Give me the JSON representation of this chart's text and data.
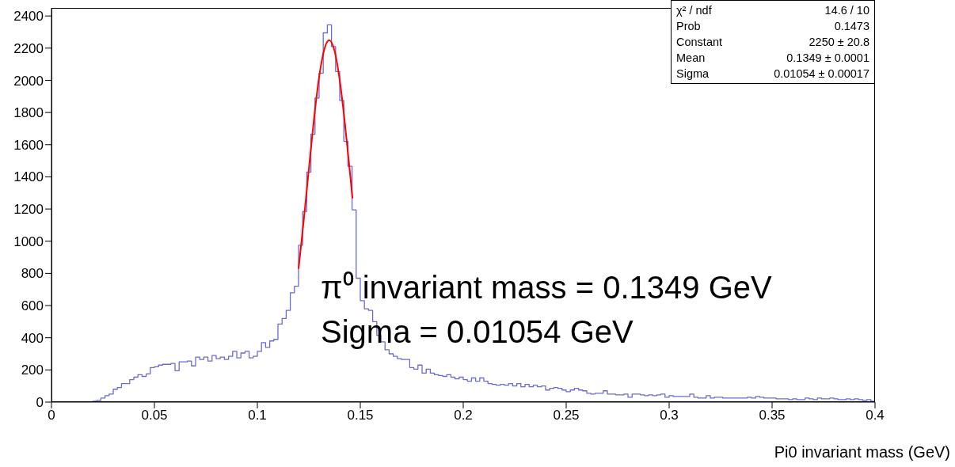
{
  "chart_data": {
    "type": "histogram",
    "xlabel": "Pi0 invariant mass (GeV)",
    "color": "#6b6bd6",
    "bins": [
      0,
      0.002,
      0.004,
      0.006,
      0.008,
      0.01,
      0.012,
      0.014,
      0.016,
      0.018,
      0.02,
      0.022,
      0.024,
      0.026,
      0.028,
      0.03,
      0.032,
      0.034,
      0.036,
      0.038,
      0.04,
      0.042,
      0.044,
      0.046,
      0.048,
      0.05,
      0.052,
      0.054,
      0.056,
      0.058,
      0.06,
      0.062,
      0.064,
      0.066,
      0.068,
      0.07,
      0.072,
      0.074,
      0.076,
      0.078,
      0.08,
      0.082,
      0.084,
      0.086,
      0.088,
      0.09,
      0.092,
      0.094,
      0.096,
      0.098,
      0.1,
      0.102,
      0.104,
      0.106,
      0.108,
      0.11,
      0.112,
      0.114,
      0.116,
      0.118,
      0.12,
      0.122,
      0.124,
      0.126,
      0.128,
      0.13,
      0.132,
      0.134,
      0.136,
      0.138,
      0.14,
      0.142,
      0.144,
      0.146,
      0.148,
      0.15,
      0.152,
      0.154,
      0.156,
      0.158,
      0.16,
      0.162,
      0.164,
      0.166,
      0.168,
      0.17,
      0.172,
      0.174,
      0.176,
      0.178,
      0.18,
      0.182,
      0.184,
      0.186,
      0.188,
      0.19,
      0.192,
      0.194,
      0.196,
      0.198,
      0.2,
      0.202,
      0.204,
      0.206,
      0.208,
      0.21,
      0.212,
      0.214,
      0.216,
      0.218,
      0.22,
      0.222,
      0.224,
      0.226,
      0.228,
      0.23,
      0.232,
      0.234,
      0.236,
      0.238,
      0.24,
      0.242,
      0.244,
      0.246,
      0.248,
      0.25,
      0.252,
      0.254,
      0.256,
      0.258,
      0.26,
      0.262,
      0.264,
      0.266,
      0.268,
      0.27,
      0.272,
      0.274,
      0.276,
      0.278,
      0.28,
      0.282,
      0.284,
      0.286,
      0.288,
      0.29,
      0.292,
      0.294,
      0.296,
      0.298,
      0.3,
      0.302,
      0.304,
      0.306,
      0.308,
      0.31,
      0.312,
      0.314,
      0.316,
      0.318,
      0.32,
      0.322,
      0.324,
      0.326,
      0.328,
      0.33,
      0.332,
      0.334,
      0.336,
      0.338,
      0.34,
      0.342,
      0.344,
      0.346,
      0.348,
      0.35,
      0.352,
      0.354,
      0.356,
      0.358,
      0.36,
      0.362,
      0.364,
      0.366,
      0.368,
      0.37,
      0.372,
      0.374,
      0.376,
      0.378,
      0.38,
      0.382,
      0.384,
      0.386,
      0.388,
      0.39,
      0.392,
      0.394,
      0.396,
      0.398,
      0.4
    ],
    "values": [
      0,
      0,
      0,
      0,
      0,
      0,
      0,
      0,
      0,
      0,
      5,
      10,
      25,
      40,
      50,
      80,
      90,
      115,
      115,
      140,
      155,
      170,
      160,
      175,
      215,
      220,
      230,
      235,
      235,
      240,
      195,
      250,
      250,
      255,
      225,
      280,
      265,
      280,
      255,
      290,
      270,
      280,
      265,
      285,
      315,
      275,
      305,
      315,
      275,
      285,
      315,
      370,
      340,
      380,
      390,
      485,
      520,
      570,
      680,
      720,
      975,
      1185,
      1430,
      1665,
      1890,
      2045,
      2295,
      2345,
      2210,
      2055,
      1875,
      1620,
      1465,
      1195,
      770,
      630,
      580,
      570,
      500,
      415,
      375,
      325,
      300,
      285,
      270,
      265,
      265,
      215,
      205,
      230,
      180,
      205,
      180,
      170,
      165,
      160,
      170,
      155,
      145,
      155,
      140,
      130,
      150,
      130,
      150,
      130,
      115,
      110,
      105,
      110,
      105,
      115,
      100,
      115,
      95,
      110,
      95,
      105,
      95,
      100,
      75,
      85,
      90,
      85,
      75,
      65,
      75,
      85,
      75,
      70,
      55,
      50,
      55,
      55,
      70,
      50,
      50,
      45,
      45,
      50,
      30,
      50,
      50,
      45,
      40,
      45,
      40,
      45,
      50,
      30,
      40,
      35,
      35,
      35,
      35,
      50,
      30,
      25,
      25,
      40,
      25,
      30,
      30,
      25,
      25,
      25,
      25,
      25,
      25,
      30,
      25,
      35,
      30,
      25,
      25,
      25,
      20,
      20,
      20,
      15,
      20,
      15,
      15,
      25,
      20,
      15,
      25,
      20,
      20,
      25,
      20,
      15,
      15,
      20,
      15,
      20,
      15,
      10,
      15,
      5
    ],
    "series": [
      {
        "type": "line",
        "color": "#ff0000",
        "x": [
          0.12,
          0.1225,
          0.125,
          0.1275,
          0.13,
          0.1325,
          0.1349,
          0.1375,
          0.14,
          0.1425,
          0.145,
          0.1462
        ],
        "values": [
          828,
          1126,
          1447,
          1759,
          2020,
          2192,
          2250,
          2183,
          2001,
          1735,
          1422,
          1266
        ]
      }
    ],
    "xlim": [
      0,
      0.4
    ],
    "xticks": [
      0,
      0.05,
      0.1,
      0.15,
      0.2,
      0.25,
      0.3,
      0.35,
      0.4
    ],
    "ylim": [
      0,
      2450
    ],
    "yticks": [
      0,
      200,
      400,
      600,
      800,
      1000,
      1200,
      1400,
      1600,
      1800,
      2000,
      2200,
      2400
    ],
    "annotations": [
      "χ² / ndf\t14.6 / 10",
      "Prob\t0.1473",
      "Constant\t2250 ± 20.8",
      "Mean\t0.1349 ± 0.0001",
      "Sigma\t0.01054 ± 0.00017",
      "π⁰ invariant mass = 0.1349 GeV",
      "Sigma = 0.01054 GeV"
    ]
  }
}
